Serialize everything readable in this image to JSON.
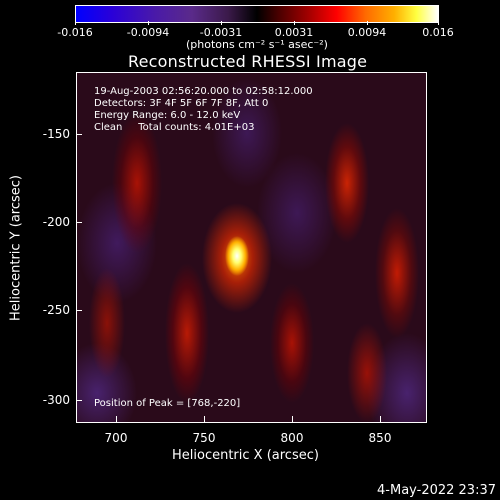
{
  "colorbar": {
    "ticks": [
      "-0.016",
      "-0.0094",
      "-0.0031",
      "0.0031",
      "0.0094",
      "0.016"
    ],
    "units": "(photons cm⁻² s⁻¹ asec⁻²)",
    "colors": [
      "#0000ff",
      "#000000",
      "#ff0000",
      "#ffff40",
      "#ffffff"
    ]
  },
  "title": "Reconstructed RHESSI Image",
  "info": {
    "time": "19-Aug-2003 02:56:20.000 to 02:58:12.000",
    "detectors": "Detectors: 3F 4F 5F 6F 7F 8F, Att 0",
    "energy": "Energy Range: 6.0 - 12.0 keV",
    "method": "Clean     Total counts: 4.01E+03"
  },
  "peak": "Position of Peak = [768,-220]",
  "axes": {
    "xlabel": "Heliocentric X (arcsec)",
    "ylabel": "Heliocentric Y (arcsec)",
    "xticks": [
      "700",
      "750",
      "800",
      "850"
    ],
    "yticks": [
      "-150",
      "-200",
      "-250",
      "-300"
    ]
  },
  "timestamp": "4-May-2022 23:37"
}
